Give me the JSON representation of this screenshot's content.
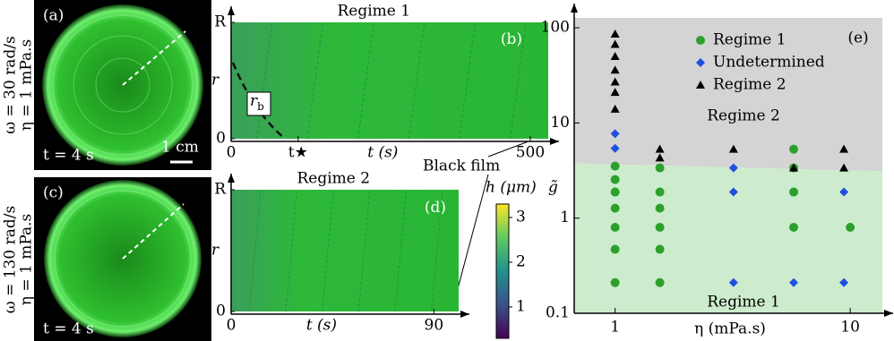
{
  "photos": [
    {
      "label": "(a)",
      "omega": "ω = 30 rad/s",
      "eta": "η = 1 mPa.s",
      "time": "t = 4 s",
      "scale": "1 cm"
    },
    {
      "label": "(c)",
      "omega": "ω = 130 rad/s",
      "eta": "η = 1 mPa.s",
      "time": "t = 4 s"
    }
  ],
  "chart_data": [
    {
      "type": "heatmap",
      "title": "Regime 1",
      "label": "(b)",
      "xlabel": "t (s)",
      "ylabel": "r",
      "xlim": [
        0,
        530
      ],
      "xticks": [
        0,
        {
          "value": 112,
          "label": "t★"
        },
        500
      ],
      "ylim": [
        0,
        1
      ],
      "yticks": [
        0,
        {
          "value": 1,
          "label": "R"
        }
      ],
      "annotation": {
        "main": "r",
        "sub": "b"
      },
      "note": "Black film"
    },
    {
      "type": "heatmap",
      "title": "Regime 2",
      "label": "(d)",
      "xlabel": "t (s)",
      "ylabel": "r",
      "xlim": [
        0,
        101
      ],
      "xticks": [
        0,
        90
      ],
      "ylim": [
        0,
        1
      ],
      "yticks": [
        0,
        {
          "value": 1,
          "label": "R"
        }
      ],
      "colorbar": {
        "label": "h (μm)",
        "lim": [
          0.3,
          3.3
        ],
        "ticks": [
          1,
          2,
          3
        ]
      }
    },
    {
      "type": "scatter",
      "label": "(e)",
      "xlabel": "η (mPa.s)",
      "ylabel": "g̃",
      "xlog": true,
      "ylog": true,
      "xlim": [
        0.67,
        13.7
      ],
      "ylim": [
        0.1,
        127
      ],
      "xticks": [
        1,
        10
      ],
      "yticks": [
        0.1,
        1,
        10,
        100
      ],
      "regions": [
        {
          "name": "Regime 2",
          "color": "#d4d4d4"
        },
        {
          "name": "Regime 1",
          "color": "#cdeccd"
        }
      ],
      "boundary": {
        "x": [
          0.67,
          13.7
        ],
        "y": [
          3.76,
          3.1
        ]
      },
      "legend": "upper right",
      "series": [
        {
          "name": "Regime 1",
          "color": "#2ca02c",
          "marker": "circle",
          "x": [
            1,
            1,
            1,
            1,
            1,
            1,
            1,
            1.55,
            1.55,
            1.55,
            1.55,
            1.55,
            1.55,
            5.75,
            5.75,
            5.75,
            5.75,
            10
          ],
          "values": [
            3.52,
            2.54,
            1.88,
            1.27,
            0.8,
            0.47,
            0.21,
            3.37,
            1.88,
            1.27,
            0.8,
            0.47,
            0.21,
            5.3,
            3.37,
            1.88,
            0.8,
            0.8
          ]
        },
        {
          "name": "Undetermined",
          "color": "#1f4fe0",
          "marker": "diamond",
          "x": [
            1,
            1,
            3.19,
            3.19,
            3.19,
            5.75,
            9.4,
            9.4
          ],
          "values": [
            7.7,
            5.4,
            3.37,
            1.88,
            0.21,
            0.21,
            1.88,
            0.21
          ]
        },
        {
          "name": "Regime 2",
          "color": "#000000",
          "marker": "triangle",
          "x": [
            1,
            1,
            1,
            1,
            1,
            1,
            1,
            1.55,
            1.55,
            3.19,
            5.75,
            9.4,
            9.4
          ],
          "values": [
            86,
            67,
            50,
            36,
            27,
            21,
            14,
            5.3,
            4.3,
            5.3,
            3.37,
            5.3,
            3.37
          ]
        }
      ]
    }
  ]
}
